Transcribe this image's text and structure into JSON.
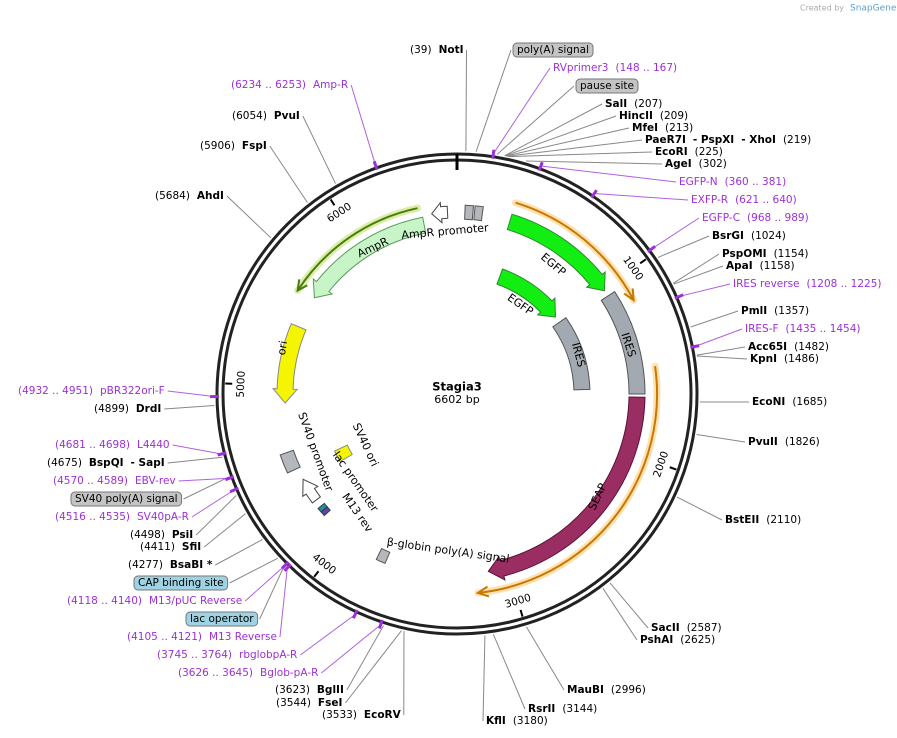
{
  "credit": {
    "prefix": "Created by",
    "brand": "SnapGene"
  },
  "map": {
    "name": "Stagia3",
    "size": "6602 bp"
  },
  "ruler": [
    "1000",
    "2000",
    "3000",
    "4000",
    "5000",
    "6000"
  ],
  "features": [
    "EGFP",
    "IRES",
    "SEAP",
    "AmpR",
    "AmpR promoter",
    "ori",
    "EGFP",
    "IRES",
    "SV40 promoter",
    "lac promoter",
    "M13 rev",
    "SV40 ori",
    "β-globin poly(A) signal"
  ],
  "sites": [
    {
      "label": "NotI",
      "pos": "(39)"
    },
    {
      "label": "poly(A) signal",
      "box": "#c4c4c4"
    },
    {
      "label": "RVprimer3",
      "range": "(148 .. 167)"
    },
    {
      "label": "pause site",
      "box": "#c4c4c4"
    },
    {
      "label": "SalI",
      "pos": "(207)"
    },
    {
      "label": "HincII",
      "pos": "(209)"
    },
    {
      "label": "MfeI",
      "pos": "(213)"
    },
    {
      "label": "PaeR7I",
      "also": [
        "- PspXI",
        "- XhoI"
      ],
      "pos": "(219)"
    },
    {
      "label": "EcoRI",
      "pos": "(225)"
    },
    {
      "label": "AgeI",
      "pos": "(302)"
    },
    {
      "label": "EGFP-N",
      "range": "(360 .. 381)"
    },
    {
      "label": "EXFP-R",
      "range": "(621 .. 640)"
    },
    {
      "label": "EGFP-C",
      "range": "(968 .. 989)"
    },
    {
      "label": "BsrGI",
      "pos": "(1024)"
    },
    {
      "label": "PspOMI",
      "pos": "(1154)"
    },
    {
      "label": "ApaI",
      "pos": "(1158)"
    },
    {
      "label": "IRES reverse",
      "range": "(1208 .. 1225)"
    },
    {
      "label": "PmlI",
      "pos": "(1357)"
    },
    {
      "label": "IRES-F",
      "range": "(1435 .. 1454)"
    },
    {
      "label": "Acc65I",
      "pos": "(1482)"
    },
    {
      "label": "KpnI",
      "pos": "(1486)"
    },
    {
      "label": "EcoNI",
      "pos": "(1685)"
    },
    {
      "label": "PvuII",
      "pos": "(1826)"
    },
    {
      "label": "BstEII",
      "pos": "(2110)"
    },
    {
      "label": "SacII",
      "pos": "(2587)"
    },
    {
      "label": "PshAI",
      "pos": "(2625)"
    },
    {
      "label": "MauBI",
      "pos": "(2996)"
    },
    {
      "label": "RsrII",
      "pos": "(3144)"
    },
    {
      "label": "KflI",
      "pos": "(3180)"
    },
    {
      "label": "EcoRV",
      "pos": "(3533)"
    },
    {
      "label": "FseI",
      "pos": "(3544)"
    },
    {
      "label": "BglII",
      "pos": "(3623)"
    },
    {
      "label": "Bglob-pA-R",
      "range": "(3626 .. 3645)"
    },
    {
      "label": "rbglobpA-R",
      "range": "(3745 .. 3764)"
    },
    {
      "label": "M13 Reverse",
      "range": "(4105 .. 4121)"
    },
    {
      "label": "lac operator",
      "box": "#9fd3e3"
    },
    {
      "label": "M13/pUC Reverse",
      "range": "(4118 .. 4140)"
    },
    {
      "label": "CAP binding site",
      "box": "#9fd3e3"
    },
    {
      "label": "BsaBI *",
      "pos": "(4277)"
    },
    {
      "label": "SfiI",
      "pos": "(4411)"
    },
    {
      "label": "PsiI",
      "pos": "(4498)"
    },
    {
      "label": "SV40pA-R",
      "range": "(4516 .. 4535)"
    },
    {
      "label": "SV40 poly(A) signal",
      "box": "#c4c4c4"
    },
    {
      "label": "EBV-rev",
      "range": "(4570 .. 4589)"
    },
    {
      "label": "BspQI",
      "also": [
        "- SapI"
      ],
      "pos": "(4675)"
    },
    {
      "label": "L4440",
      "range": "(4681 .. 4698)"
    },
    {
      "label": "DrdI",
      "pos": "(4899)"
    },
    {
      "label": "pBR322ori-F",
      "range": "(4932 .. 4951)"
    },
    {
      "label": "AhdI",
      "pos": "(5684)"
    },
    {
      "label": "FspI",
      "pos": "(5906)"
    },
    {
      "label": "PvuI",
      "pos": "(6054)"
    },
    {
      "label": "Amp-R",
      "range": "(6234 .. 6253)"
    }
  ]
}
